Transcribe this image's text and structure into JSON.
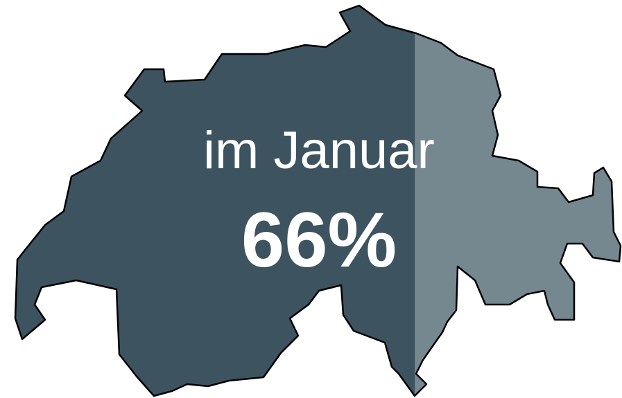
{
  "chart_data": {
    "type": "pictogram-fill",
    "title": "im Januar",
    "values": [
      66
    ],
    "value_labels": [
      "66%"
    ],
    "color": "#3d5360",
    "rest_color": "#75878f",
    "ylim": [
      0,
      100
    ]
  }
}
